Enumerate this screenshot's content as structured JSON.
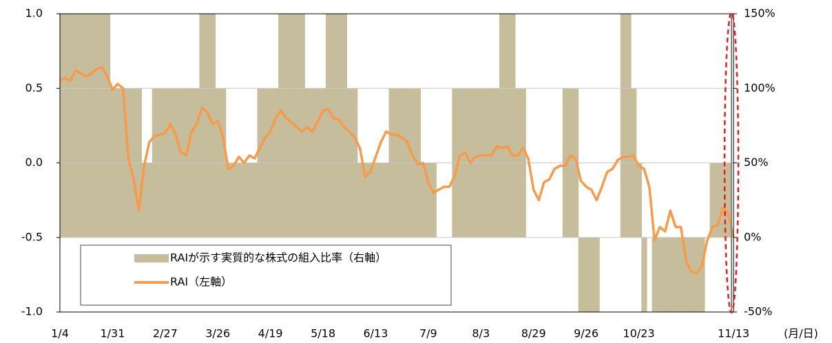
{
  "chart_data": {
    "type": "combo",
    "x_label": "(月/日)",
    "categories": [
      "1/4",
      null,
      null,
      null,
      null,
      null,
      null,
      null,
      null,
      null,
      "1/31",
      null,
      null,
      null,
      null,
      null,
      null,
      null,
      null,
      null,
      "2/27",
      null,
      null,
      null,
      null,
      null,
      null,
      null,
      null,
      null,
      "3/26",
      null,
      null,
      null,
      null,
      null,
      null,
      null,
      null,
      null,
      "4/19",
      null,
      null,
      null,
      null,
      null,
      null,
      null,
      null,
      null,
      "5/18",
      null,
      null,
      null,
      null,
      null,
      null,
      null,
      null,
      null,
      "6/13",
      null,
      null,
      null,
      null,
      null,
      null,
      null,
      null,
      null,
      "7/9",
      null,
      null,
      null,
      null,
      null,
      null,
      null,
      null,
      null,
      "8/3",
      null,
      null,
      null,
      null,
      null,
      null,
      null,
      null,
      null,
      "8/29",
      null,
      null,
      null,
      null,
      null,
      null,
      null,
      null,
      null,
      "9/26",
      null,
      null,
      null,
      null,
      null,
      null,
      null,
      null,
      null,
      "10/23",
      null,
      null,
      null,
      null,
      null,
      null,
      null,
      null,
      null,
      null,
      null,
      null,
      null,
      null,
      null,
      null,
      null,
      "11/13"
    ],
    "series": [
      {
        "name": "RAIが示す実質的な株式の組入比率（右軸）",
        "type": "bar",
        "axis": "y2",
        "color": "#c5bd9b",
        "values": [
          150,
          150,
          150,
          150,
          150,
          150,
          150,
          150,
          150,
          150,
          100,
          100,
          100,
          100,
          100,
          100,
          50,
          50,
          100,
          100,
          100,
          100,
          100,
          100,
          100,
          100,
          100,
          150,
          150,
          150,
          100,
          100,
          50,
          50,
          50,
          50,
          50,
          50,
          100,
          100,
          100,
          100,
          150,
          150,
          150,
          150,
          150,
          100,
          100,
          100,
          100,
          150,
          150,
          150,
          150,
          100,
          100,
          50,
          50,
          50,
          50,
          50,
          50,
          100,
          100,
          100,
          100,
          100,
          100,
          50,
          50,
          50,
          0,
          0,
          0,
          100,
          100,
          100,
          100,
          100,
          100,
          100,
          100,
          100,
          150,
          150,
          150,
          100,
          100,
          0,
          0,
          0,
          0,
          0,
          0,
          0,
          100,
          100,
          100,
          -50,
          -50,
          -50,
          -50,
          0,
          0,
          0,
          0,
          150,
          150,
          100,
          50,
          -50,
          0,
          -50,
          -50,
          -50,
          -50,
          -50,
          -50,
          -50,
          -50,
          -50,
          -50,
          0,
          50,
          50,
          50,
          50,
          0
        ]
      },
      {
        "name": "RAI（左軸）",
        "type": "line",
        "color": "#f79a4a",
        "values": [
          0.55,
          0.57,
          0.55,
          0.62,
          0.6,
          0.58,
          0.6,
          0.63,
          0.64,
          0.58,
          0.49,
          0.53,
          0.5,
          0.03,
          -0.11,
          -0.32,
          -0.02,
          0.14,
          0.18,
          0.19,
          0.2,
          0.26,
          0.19,
          0.07,
          0.05,
          0.21,
          0.26,
          0.37,
          0.34,
          0.26,
          0.28,
          0.17,
          -0.04,
          -0.02,
          0.04,
          0,
          0.05,
          0.03,
          0.1,
          0.17,
          0.21,
          0.3,
          0.35,
          0.3,
          0.27,
          0.24,
          0.21,
          0.24,
          0.21,
          0.28,
          0.35,
          0.36,
          0.3,
          0.29,
          0.24,
          0.21,
          0.17,
          0.1,
          -0.09,
          -0.06,
          0.04,
          0.14,
          0.21,
          0.19,
          0.19,
          0.17,
          0.14,
          0.05,
          -0.01,
          0,
          -0.13,
          -0.2,
          -0.18,
          -0.16,
          -0.16,
          -0.09,
          0.05,
          0.07,
          0,
          0.04,
          0.05,
          0.05,
          0.05,
          0.11,
          0.1,
          0.11,
          0.05,
          0.05,
          0.1,
          0.03,
          -0.18,
          -0.25,
          -0.13,
          -0.11,
          -0.04,
          -0.02,
          -0.02,
          0.05,
          0.03,
          -0.12,
          -0.16,
          -0.18,
          -0.25,
          -0.16,
          -0.06,
          -0.04,
          0.02,
          0.04,
          0.04,
          0.05,
          -0.02,
          -0.04,
          -0.16,
          -0.52,
          -0.43,
          -0.46,
          -0.32,
          -0.43,
          -0.43,
          -0.66,
          -0.73,
          -0.74,
          -0.69,
          -0.52,
          -0.43,
          -0.42,
          -0.3,
          -0.34,
          -0.5
        ]
      }
    ],
    "ylim": [
      -1,
      1
    ],
    "yticks": [
      {
        "value": -1,
        "label": "-1.0"
      },
      -0.5,
      {
        "value": 0,
        "label": "0.0"
      },
      0.5,
      {
        "value": 1,
        "label": "1.0"
      }
    ],
    "y2lim": [
      -50,
      150
    ],
    "y2ticks": [
      {
        "value": -50,
        "label": "-50%"
      },
      {
        "value": 0,
        "label": "0%"
      },
      {
        "value": 50,
        "label": "50%"
      },
      {
        "value": 100,
        "label": "100%"
      },
      {
        "value": 150,
        "label": "150%"
      }
    ],
    "grid": true,
    "legend": "lower left"
  }
}
